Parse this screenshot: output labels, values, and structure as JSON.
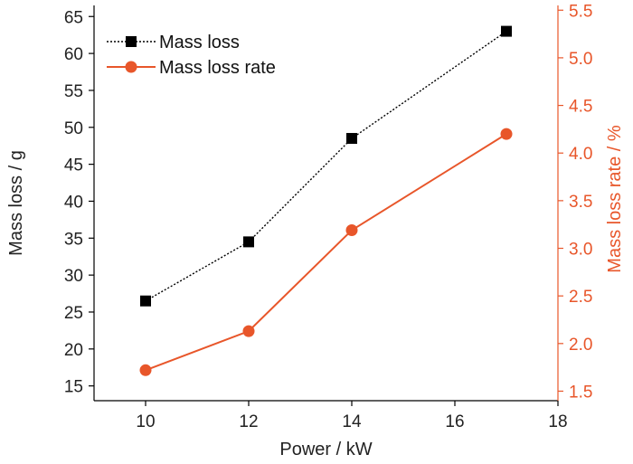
{
  "chart_data": {
    "type": "line",
    "xlabel": "Power / kW",
    "ylabel_left": "Mass loss / g",
    "ylabel_right": "Mass loss rate / %",
    "xlim": [
      9,
      18
    ],
    "ylim_left": [
      13,
      66.5
    ],
    "ylim_right": [
      1.4,
      5.55
    ],
    "x_ticks": [
      10,
      12,
      14,
      16,
      18
    ],
    "y_left_ticks": [
      15,
      20,
      25,
      30,
      35,
      40,
      45,
      50,
      55,
      60,
      65
    ],
    "y_right_ticks": [
      1.5,
      2.0,
      2.5,
      3.0,
      3.5,
      4.0,
      4.5,
      5.0,
      5.5
    ],
    "x_tick_labels": [
      "10",
      "12",
      "14",
      "16",
      "18"
    ],
    "y_left_tick_labels": [
      "15",
      "20",
      "25",
      "30",
      "35",
      "40",
      "45",
      "50",
      "55",
      "60",
      "65"
    ],
    "y_right_tick_labels": [
      "1.5",
      "2.0",
      "2.5",
      "3.0",
      "3.5",
      "4.0",
      "4.5",
      "5.0",
      "5.5"
    ],
    "x": [
      10,
      12,
      14,
      17
    ],
    "series": [
      {
        "name": "Mass loss",
        "axis": "left",
        "values": [
          26.5,
          34.5,
          48.5,
          63.0
        ],
        "color": "#000000",
        "marker": "square",
        "line_style": "dotted"
      },
      {
        "name": "Mass loss rate",
        "axis": "right",
        "values": [
          1.72,
          2.13,
          3.19,
          4.2
        ],
        "color": "#e8562a",
        "marker": "circle",
        "line_style": "solid"
      }
    ],
    "legend_position": "top-left",
    "grid": false
  }
}
